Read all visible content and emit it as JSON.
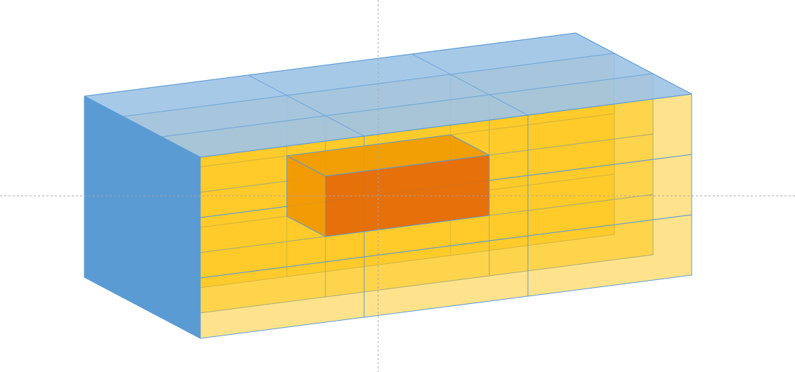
{
  "diagram": {
    "kind": "3d-stack",
    "grid": {
      "columns": 3,
      "rows": 3,
      "layers": 3
    },
    "highlighted_block": {
      "column": 2,
      "row": 2,
      "layer": 2
    },
    "colors": {
      "front_face": "#ffc000",
      "top_face": "#9dc3e6",
      "side_face": "#5b9bd5",
      "outline": "#5b9bd5",
      "highlight_front": "#e46c0a",
      "highlight_top": "#f09a00",
      "highlight_side": "#f29600",
      "background": "#ffffff",
      "guide_line": "#a6a6a6"
    },
    "guides": {
      "vertical": true,
      "horizontal": true,
      "style": "dashed"
    }
  }
}
